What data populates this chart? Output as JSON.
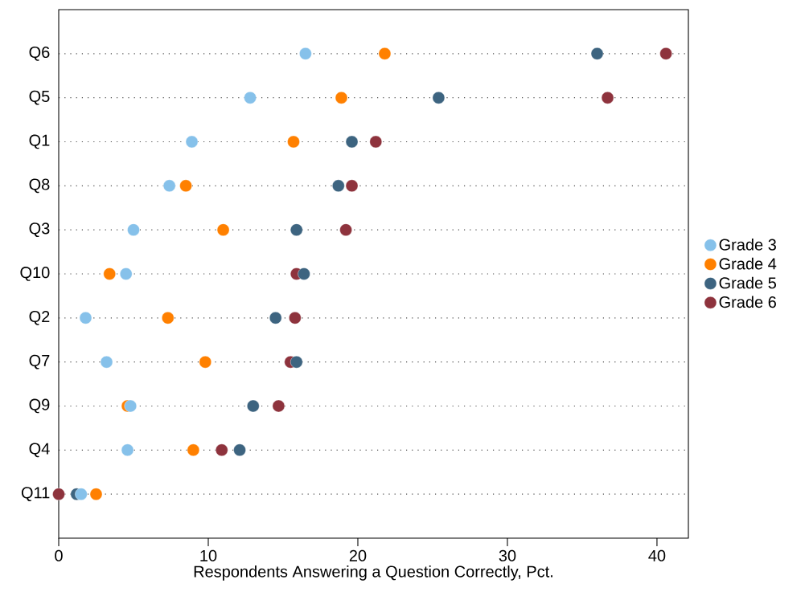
{
  "chart_data": {
    "type": "scatter",
    "orientation": "horizontal",
    "xlabel": "Respondents Answering a Question Correctly, Pct.",
    "categories": [
      "Q6",
      "Q5",
      "Q1",
      "Q8",
      "Q3",
      "Q10",
      "Q2",
      "Q7",
      "Q9",
      "Q4",
      "Q11"
    ],
    "series": [
      {
        "name": "Grade 3",
        "color": "#86c1ea",
        "values": [
          16.5,
          12.8,
          8.9,
          7.4,
          5.0,
          4.5,
          1.8,
          3.2,
          4.8,
          4.6,
          1.5
        ]
      },
      {
        "name": "Grade 4",
        "color": "#ff8000",
        "values": [
          21.8,
          18.9,
          15.7,
          8.5,
          11.0,
          3.4,
          7.3,
          9.8,
          4.6,
          9.0,
          2.5
        ]
      },
      {
        "name": "Grade 5",
        "color": "#3d6480",
        "values": [
          36.0,
          25.4,
          19.6,
          18.7,
          15.9,
          16.4,
          14.5,
          15.9,
          13.0,
          12.1,
          1.2
        ]
      },
      {
        "name": "Grade 6",
        "color": "#8e333d",
        "values": [
          40.6,
          36.7,
          21.2,
          19.6,
          19.2,
          15.9,
          15.8,
          15.5,
          14.7,
          10.9,
          0.0
        ]
      }
    ],
    "xlim": [
      0,
      42.1
    ],
    "xticks": [
      0,
      10,
      20,
      30,
      40
    ],
    "grid": "y",
    "legend": "right",
    "marker": "circle"
  }
}
